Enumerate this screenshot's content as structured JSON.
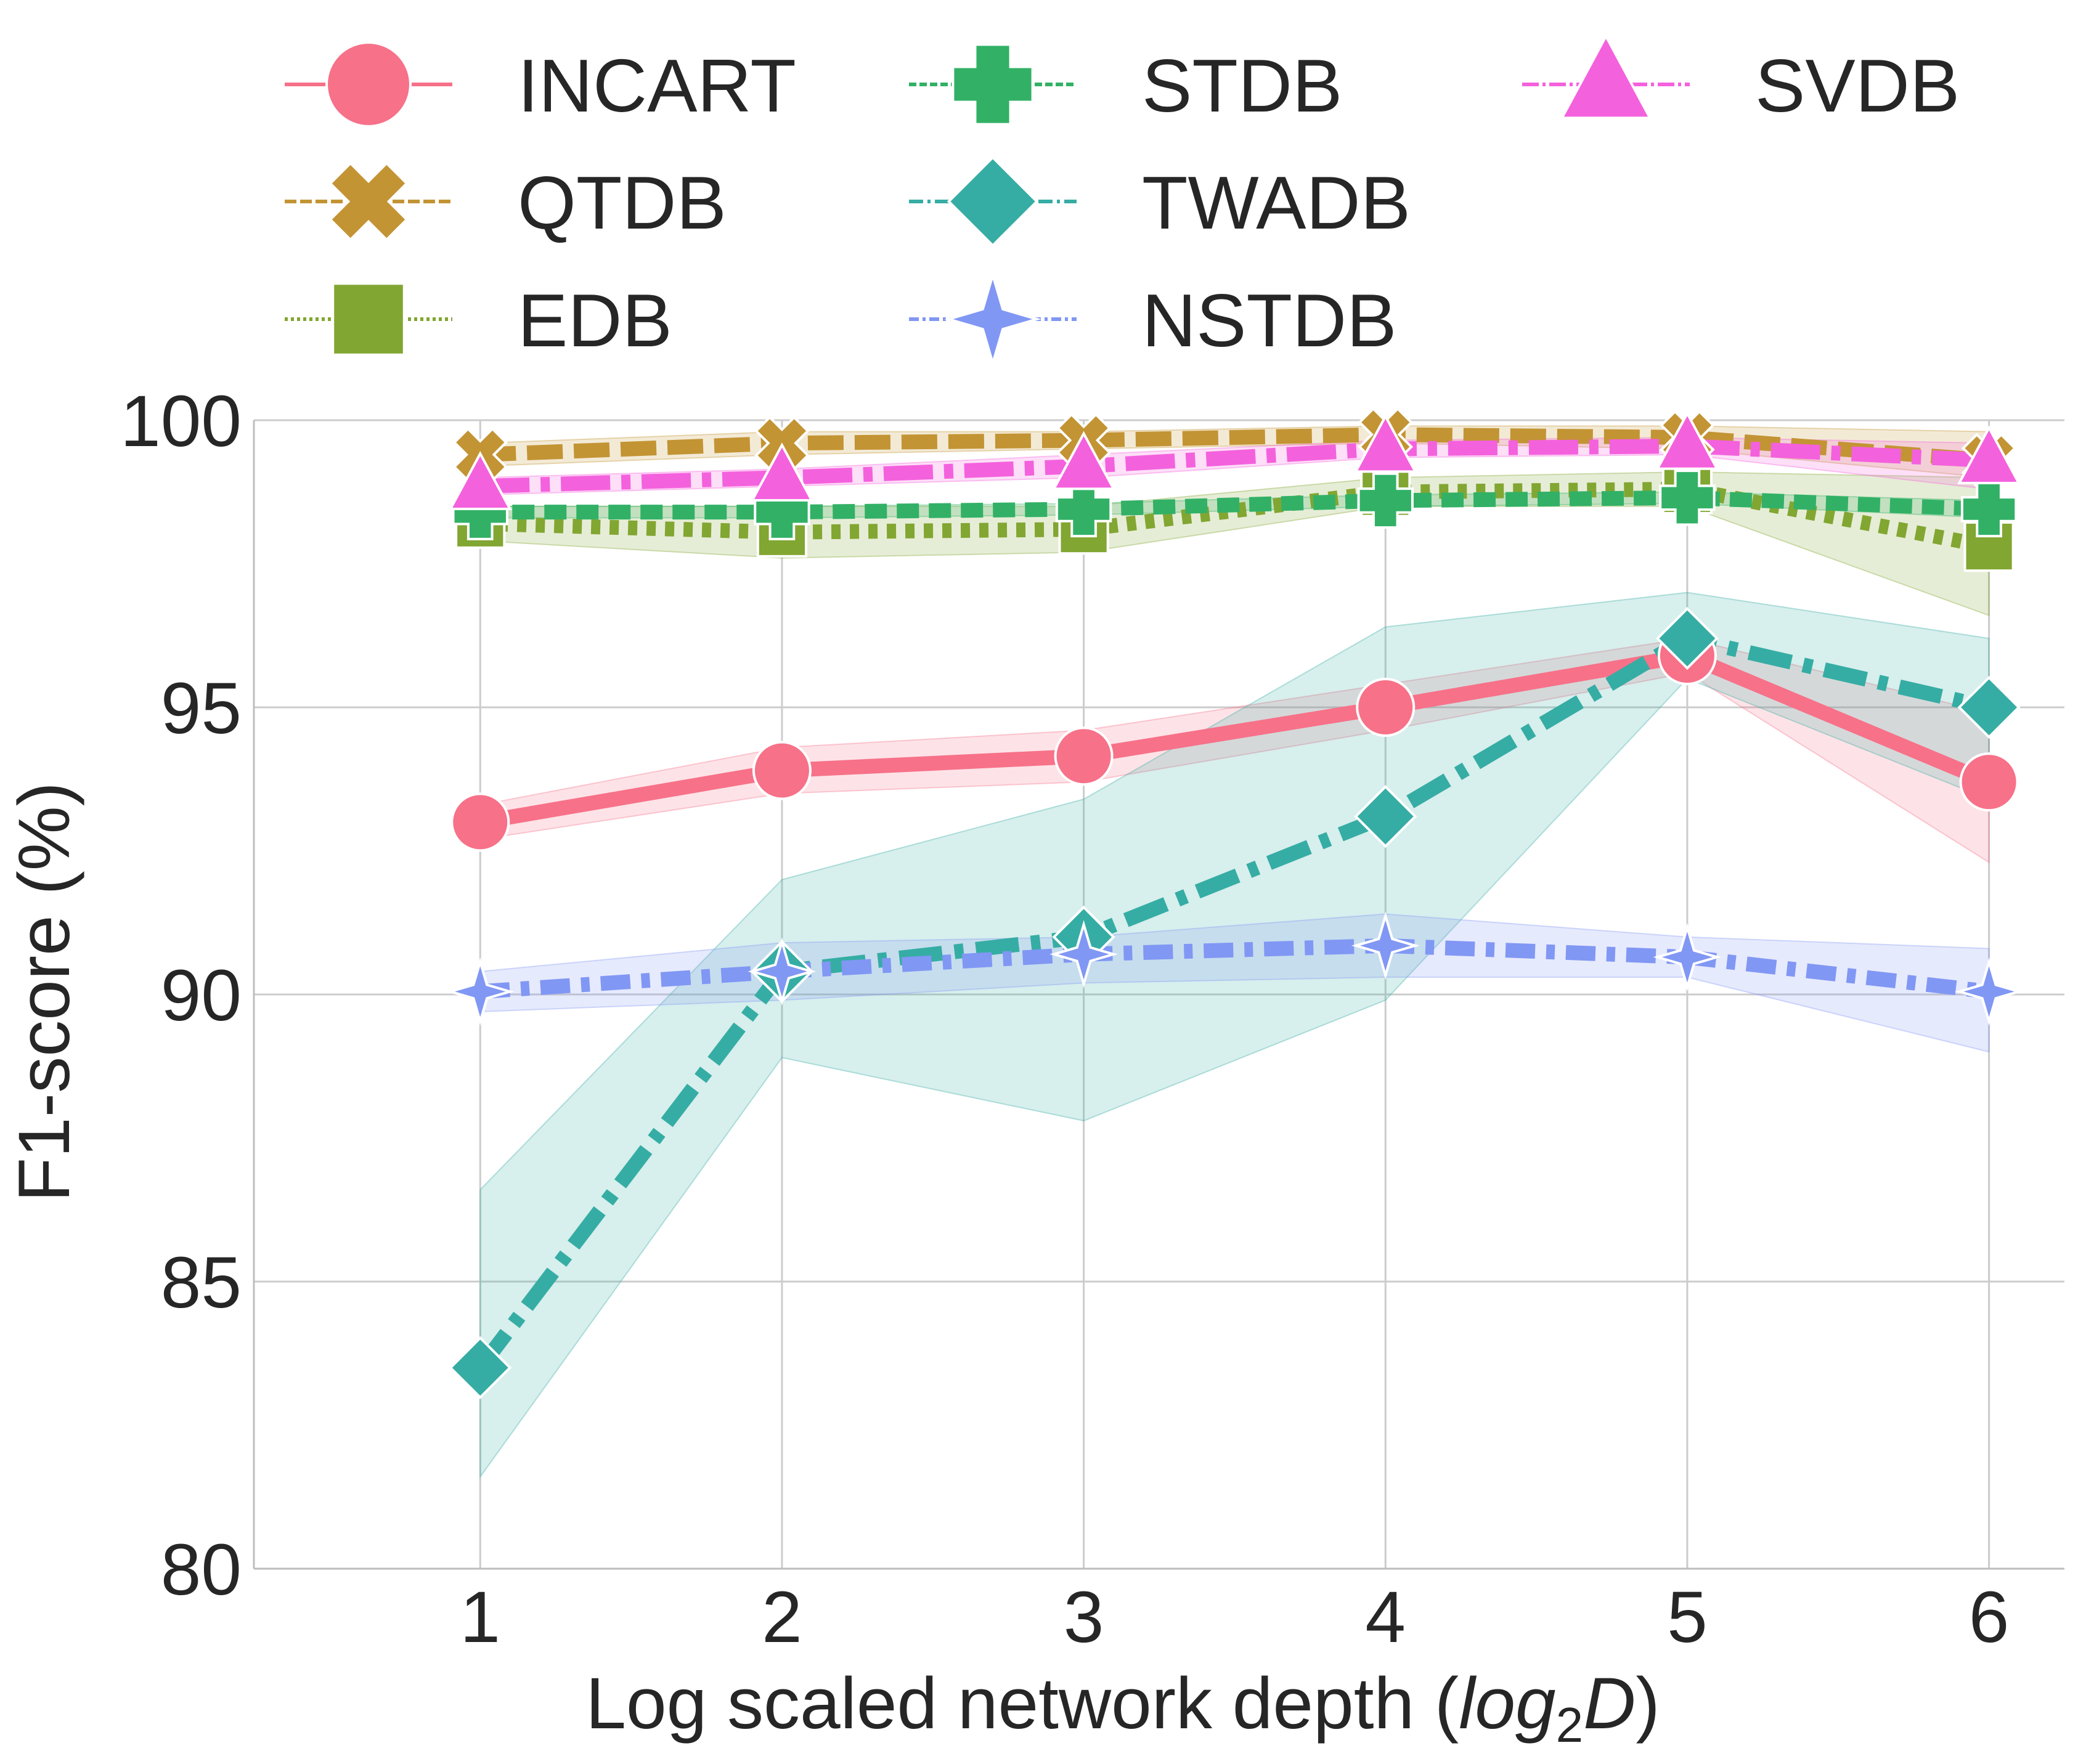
{
  "chart_data": {
    "type": "line",
    "title": "",
    "xlabel_main": "Log scaled network depth (",
    "xlabel_italic": "log",
    "xlabel_sub": "2",
    "xlabel_italic2": "D",
    "xlabel_close": ")",
    "ylabel": "F1-score (%)",
    "x": [
      1,
      2,
      3,
      4,
      5,
      6
    ],
    "xlim": [
      0.25,
      6.25
    ],
    "ylim": [
      80,
      100
    ],
    "xticks": [
      "1",
      "2",
      "3",
      "4",
      "5",
      "6"
    ],
    "yticks": [
      80,
      85,
      90,
      95,
      100
    ],
    "grid": true,
    "legend_placement": "top",
    "series": [
      {
        "name": "INCART",
        "color": "#f77189",
        "marker": "circle",
        "dash": "solid",
        "values": [
          93.0,
          93.9,
          94.15,
          95.0,
          95.9,
          93.7
        ],
        "lower": [
          92.7,
          93.5,
          93.7,
          94.6,
          95.6,
          92.3
        ],
        "upper": [
          93.3,
          94.3,
          94.6,
          95.4,
          96.2,
          94.9
        ]
      },
      {
        "name": "QTDB",
        "color": "#c39434",
        "marker": "x",
        "dash": "dashed",
        "values": [
          99.4,
          99.6,
          99.65,
          99.75,
          99.7,
          99.3
        ],
        "lower": [
          99.2,
          99.4,
          99.5,
          99.6,
          99.5,
          99.0
        ],
        "upper": [
          99.6,
          99.8,
          99.8,
          99.9,
          99.9,
          99.8
        ]
      },
      {
        "name": "EDB",
        "color": "#82a632",
        "marker": "square",
        "dash": "dotted",
        "values": [
          98.2,
          98.05,
          98.1,
          98.75,
          98.8,
          97.8
        ],
        "lower": [
          97.9,
          97.6,
          97.7,
          98.5,
          98.5,
          96.6
        ],
        "upper": [
          98.5,
          98.5,
          98.5,
          99.0,
          99.1,
          99.0
        ]
      },
      {
        "name": "STDB",
        "color": "#32b166",
        "marker": "plus",
        "dash": "dashed-dense",
        "values": [
          98.4,
          98.4,
          98.45,
          98.6,
          98.65,
          98.45
        ],
        "lower": [
          98.3,
          98.3,
          98.35,
          98.5,
          98.55,
          98.3
        ],
        "upper": [
          98.5,
          98.5,
          98.55,
          98.7,
          98.75,
          98.6
        ]
      },
      {
        "name": "TWADB",
        "color": "#36ada4",
        "marker": "diamond",
        "dash": "dashdot",
        "values": [
          83.5,
          90.4,
          91.0,
          93.1,
          96.2,
          95.0
        ],
        "lower": [
          81.6,
          88.9,
          87.8,
          89.9,
          95.5,
          93.4
        ],
        "upper": [
          86.6,
          92.0,
          93.4,
          96.4,
          97.0,
          96.2
        ]
      },
      {
        "name": "NSTDB",
        "color": "#8197f4",
        "marker": "star4",
        "dash": "dashdotdot",
        "values": [
          90.05,
          90.4,
          90.7,
          90.85,
          90.65,
          90.05
        ],
        "lower": [
          89.7,
          89.9,
          90.2,
          90.3,
          90.3,
          89.0
        ],
        "upper": [
          90.4,
          90.9,
          91.0,
          91.4,
          91.0,
          90.8
        ]
      },
      {
        "name": "SVDB",
        "color": "#f461dd",
        "marker": "triangle",
        "dash": "dashdot-long",
        "values": [
          98.85,
          99.0,
          99.2,
          99.5,
          99.55,
          99.3
        ],
        "lower": [
          98.7,
          98.85,
          99.0,
          99.35,
          99.4,
          98.8
        ],
        "upper": [
          99.0,
          99.15,
          99.4,
          99.65,
          99.7,
          99.6
        ]
      }
    ]
  }
}
